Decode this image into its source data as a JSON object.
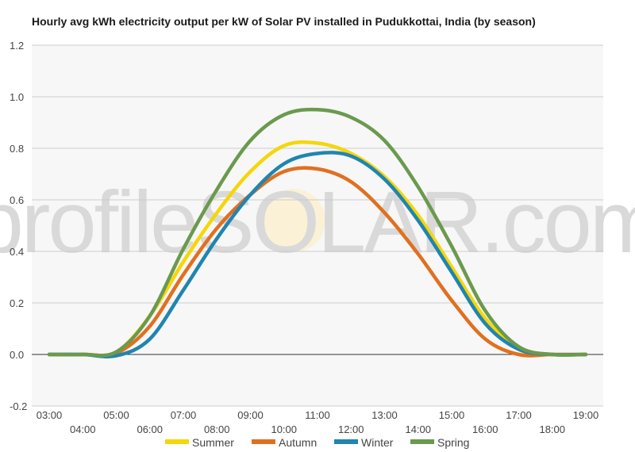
{
  "chart_data": {
    "type": "line",
    "title": "Hourly avg kWh electricity output per kW of Solar PV installed in Pudukkottai, India (by season)",
    "xlabel": "",
    "ylabel": "",
    "x": [
      "03:00",
      "04:00",
      "05:00",
      "06:00",
      "07:00",
      "08:00",
      "09:00",
      "10:00",
      "11:00",
      "12:00",
      "13:00",
      "14:00",
      "15:00",
      "16:00",
      "17:00",
      "18:00",
      "19:00"
    ],
    "ylim": [
      -0.2,
      1.2
    ],
    "yticks": [
      "-0.2",
      "0.0",
      "0.2",
      "0.4",
      "0.6",
      "0.8",
      "1.0",
      "1.2"
    ],
    "grid": true,
    "legend_position": "bottom",
    "watermark": "profileSOLAR.com",
    "series": [
      {
        "name": "Summer",
        "color": "#f5d60a",
        "values": [
          0,
          0,
          0.01,
          0.15,
          0.36,
          0.55,
          0.71,
          0.81,
          0.82,
          0.78,
          0.69,
          0.54,
          0.34,
          0.14,
          0.02,
          0,
          0
        ]
      },
      {
        "name": "Autumn",
        "color": "#e07020",
        "values": [
          0,
          0,
          0.005,
          0.11,
          0.31,
          0.49,
          0.62,
          0.71,
          0.72,
          0.67,
          0.55,
          0.39,
          0.21,
          0.06,
          0,
          0,
          0
        ]
      },
      {
        "name": "Winter",
        "color": "#2085b0",
        "values": [
          0,
          0,
          -0.005,
          0.06,
          0.25,
          0.45,
          0.62,
          0.74,
          0.78,
          0.77,
          0.68,
          0.52,
          0.32,
          0.12,
          0.02,
          0,
          0
        ]
      },
      {
        "name": "Spring",
        "color": "#6a9a4e",
        "values": [
          0,
          0,
          0.01,
          0.15,
          0.41,
          0.64,
          0.83,
          0.93,
          0.95,
          0.92,
          0.83,
          0.65,
          0.42,
          0.17,
          0.03,
          0,
          0
        ]
      }
    ]
  }
}
